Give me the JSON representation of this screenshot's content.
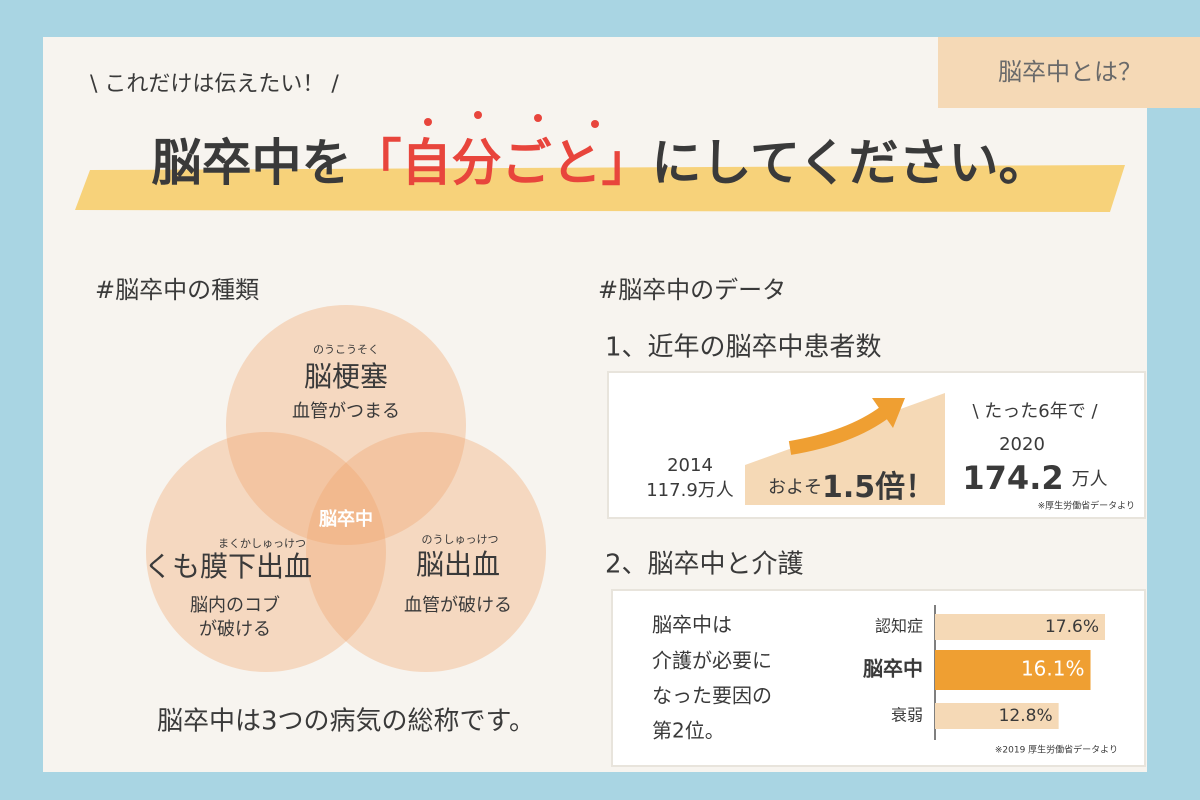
{
  "tag": "脳卒中とは？",
  "header": {
    "lead": "\\ これだけは伝えたい！ /",
    "title_before": "脳卒中を",
    "title_highlight": "「自分ごと」",
    "title_after": "にしてください。"
  },
  "types": {
    "heading": "#脳卒中の種類",
    "circles": [
      {
        "ruby": "のうこうそく",
        "name": "脳梗塞",
        "desc": [
          "血管がつまる"
        ]
      },
      {
        "ruby": "まくかしゅっけつ",
        "name": "くも膜下出血",
        "desc": [
          "脳内のコブ",
          "が破ける"
        ]
      },
      {
        "ruby": "のうしゅっけつ",
        "name": "脳出血",
        "desc": [
          "血管が破ける"
        ]
      }
    ],
    "center": "脳卒中",
    "summary": "脳卒中は3つの病気の総称です。"
  },
  "data": {
    "heading": "#脳卒中のデータ",
    "patients": {
      "title": "1、近年の脳卒中患者数",
      "from_year": "2014",
      "from_value": "117.9万人",
      "about": "およそ",
      "ratio": "1.5倍！",
      "lead": "\\ たった6年で /",
      "to_year": "2020",
      "to_value": "174.2",
      "to_unit": "万人",
      "note": "※厚生労働省データより"
    },
    "care": {
      "title": "2、脳卒中と介護",
      "text": [
        "脳卒中は",
        "介護が必要に",
        "なった要因の",
        "第2位。"
      ],
      "chart": {
        "type": "bar",
        "orientation": "horizontal",
        "categories": [
          "認知症",
          "脳卒中",
          "衰弱"
        ],
        "values": [
          17.6,
          16.1,
          12.8
        ],
        "value_labels": [
          "17.6%",
          "16.1%",
          "12.8%"
        ],
        "colors": [
          "#f5d9b6",
          "#ef9f32",
          "#f5d9b6"
        ]
      },
      "note": "※2019 厚生労働省データより"
    }
  }
}
